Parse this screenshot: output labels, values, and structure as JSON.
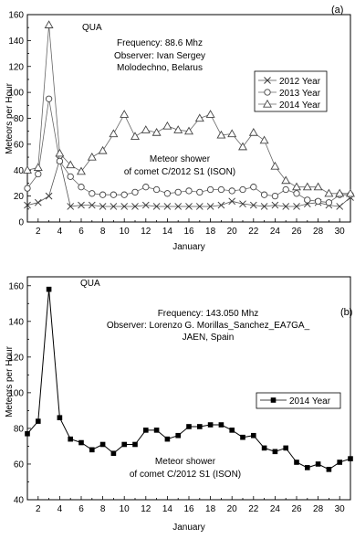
{
  "chart_data": [
    {
      "panel_label": "(a)",
      "type": "line",
      "xlabel": "January",
      "ylabel": "Meteors per Hour",
      "xlim": [
        1,
        31
      ],
      "ylim": [
        0,
        160
      ],
      "xticks": [
        2,
        4,
        6,
        8,
        10,
        12,
        14,
        16,
        18,
        20,
        22,
        24,
        26,
        28,
        30
      ],
      "yticks": [
        0,
        20,
        40,
        60,
        80,
        100,
        120,
        140,
        160
      ],
      "annotations": {
        "peak": "QUA",
        "frequency": "Frequency: 88.6 Mhz",
        "observer": "Observer: Ivan Sergey",
        "location": "Molodechno, Belarus",
        "shower_line1": "Meteor shower",
        "shower_line2": "of comet C/2012 S1 (ISON)"
      },
      "legend_position": "top-right",
      "series": [
        {
          "name": "2012 Year",
          "marker": "x",
          "x": [
            1,
            2,
            3,
            4,
            5,
            6,
            7,
            8,
            9,
            10,
            11,
            12,
            13,
            14,
            15,
            16,
            17,
            18,
            19,
            20,
            21,
            22,
            23,
            24,
            25,
            26,
            27,
            28,
            29,
            30,
            31
          ],
          "values": [
            13,
            15,
            20,
            48,
            12,
            13,
            13,
            12,
            12,
            12,
            12,
            13,
            12,
            12,
            12,
            12,
            12,
            12,
            13,
            16,
            14,
            13,
            12,
            13,
            12,
            12,
            14,
            15,
            13,
            12,
            19
          ]
        },
        {
          "name": "2013 Year",
          "marker": "circle",
          "x": [
            1,
            2,
            3,
            4,
            5,
            6,
            7,
            8,
            9,
            10,
            11,
            12,
            13,
            14,
            15,
            16,
            17,
            18,
            19,
            20,
            21,
            22,
            23,
            24,
            25,
            26,
            27,
            28,
            29,
            30,
            31
          ],
          "values": [
            26,
            37,
            95,
            47,
            35,
            27,
            22,
            21,
            21,
            21,
            23,
            27,
            25,
            22,
            23,
            24,
            23,
            25,
            25,
            24,
            25,
            27,
            21,
            20,
            25,
            22,
            17,
            16,
            15,
            21,
            21
          ]
        },
        {
          "name": "2014 Year",
          "marker": "triangle",
          "x": [
            1,
            2,
            3,
            4,
            5,
            6,
            7,
            8,
            9,
            10,
            11,
            12,
            13,
            14,
            15,
            16,
            17,
            18,
            19,
            20,
            21,
            22,
            23,
            24,
            25,
            26,
            27,
            28,
            29,
            30,
            31
          ],
          "values": [
            40,
            42,
            152,
            53,
            44,
            39,
            50,
            55,
            68,
            83,
            66,
            71,
            69,
            74,
            71,
            70,
            80,
            83,
            67,
            68,
            58,
            69,
            63,
            43,
            32,
            27,
            27,
            27,
            22,
            22,
            22
          ]
        }
      ]
    },
    {
      "panel_label": "(b)",
      "type": "line",
      "xlabel": "January",
      "ylabel": "Meteors per Hour",
      "xlim": [
        1,
        31
      ],
      "ylim": [
        40,
        165
      ],
      "xticks": [
        2,
        4,
        6,
        8,
        10,
        12,
        14,
        16,
        18,
        20,
        22,
        24,
        26,
        28,
        30
      ],
      "yticks": [
        40,
        60,
        80,
        100,
        120,
        140,
        160
      ],
      "annotations": {
        "peak": "QUA",
        "frequency": "Frequency: 143.050 Mhz",
        "observer": "Observer: Lorenzo G. Morillas_Sanchez_EA7GA_",
        "location": "JAEN, Spain",
        "shower_line1": "Meteor shower",
        "shower_line2": "of comet C/2012 S1 (ISON)"
      },
      "legend_position": "center-right",
      "series": [
        {
          "name": "2014 Year",
          "marker": "square",
          "x": [
            1,
            2,
            3,
            4,
            5,
            6,
            7,
            8,
            9,
            10,
            11,
            12,
            13,
            14,
            15,
            16,
            17,
            18,
            19,
            20,
            21,
            22,
            23,
            24,
            25,
            26,
            27,
            28,
            29,
            30,
            31
          ],
          "values": [
            77,
            84,
            158,
            86,
            74,
            72,
            68,
            71,
            66,
            71,
            71,
            79,
            79,
            74,
            76,
            81,
            81,
            82,
            82,
            79,
            75,
            76,
            69,
            67,
            69,
            61,
            58,
            60,
            57,
            61,
            63
          ]
        }
      ]
    }
  ]
}
